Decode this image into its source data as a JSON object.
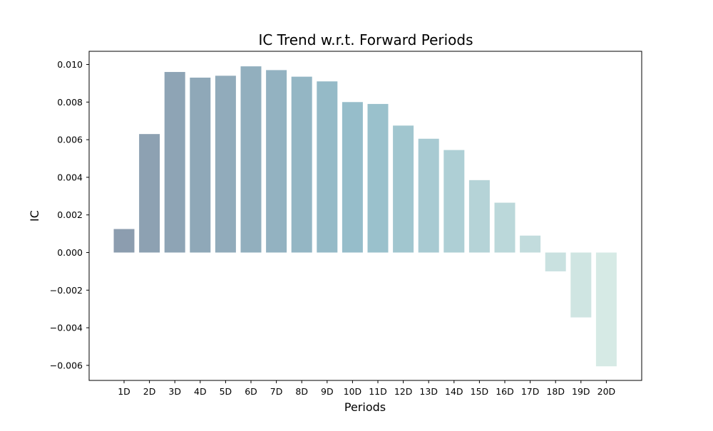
{
  "chart_data": {
    "type": "bar",
    "title": "IC Trend w.r.t. Forward Periods",
    "xlabel": "Periods",
    "ylabel": "IC",
    "categories": [
      "1D",
      "2D",
      "3D",
      "4D",
      "5D",
      "6D",
      "7D",
      "8D",
      "9D",
      "10D",
      "11D",
      "12D",
      "13D",
      "14D",
      "15D",
      "16D",
      "17D",
      "18D",
      "19D",
      "20D"
    ],
    "values": [
      0.00125,
      0.0063,
      0.0096,
      0.0093,
      0.0094,
      0.0099,
      0.0097,
      0.00935,
      0.0091,
      0.008,
      0.0079,
      0.00675,
      0.00605,
      0.00545,
      0.00385,
      0.00265,
      0.0009,
      -0.001,
      -0.00345,
      -0.00605
    ],
    "ylim": [
      -0.0068,
      0.0107
    ],
    "yticks": [
      -0.006,
      -0.004,
      -0.002,
      0.0,
      0.002,
      0.004,
      0.006,
      0.008,
      0.01
    ],
    "ytick_labels": [
      "−0.006",
      "−0.004",
      "−0.002",
      "0.000",
      "0.002",
      "0.004",
      "0.006",
      "0.008",
      "0.010"
    ],
    "grid": false,
    "colors": {
      "gradient_start": "#8c9daf",
      "gradient_mid": "#97bfcb",
      "gradient_end": "#d6eae5",
      "axis": "#000000",
      "background": "#ffffff"
    }
  }
}
